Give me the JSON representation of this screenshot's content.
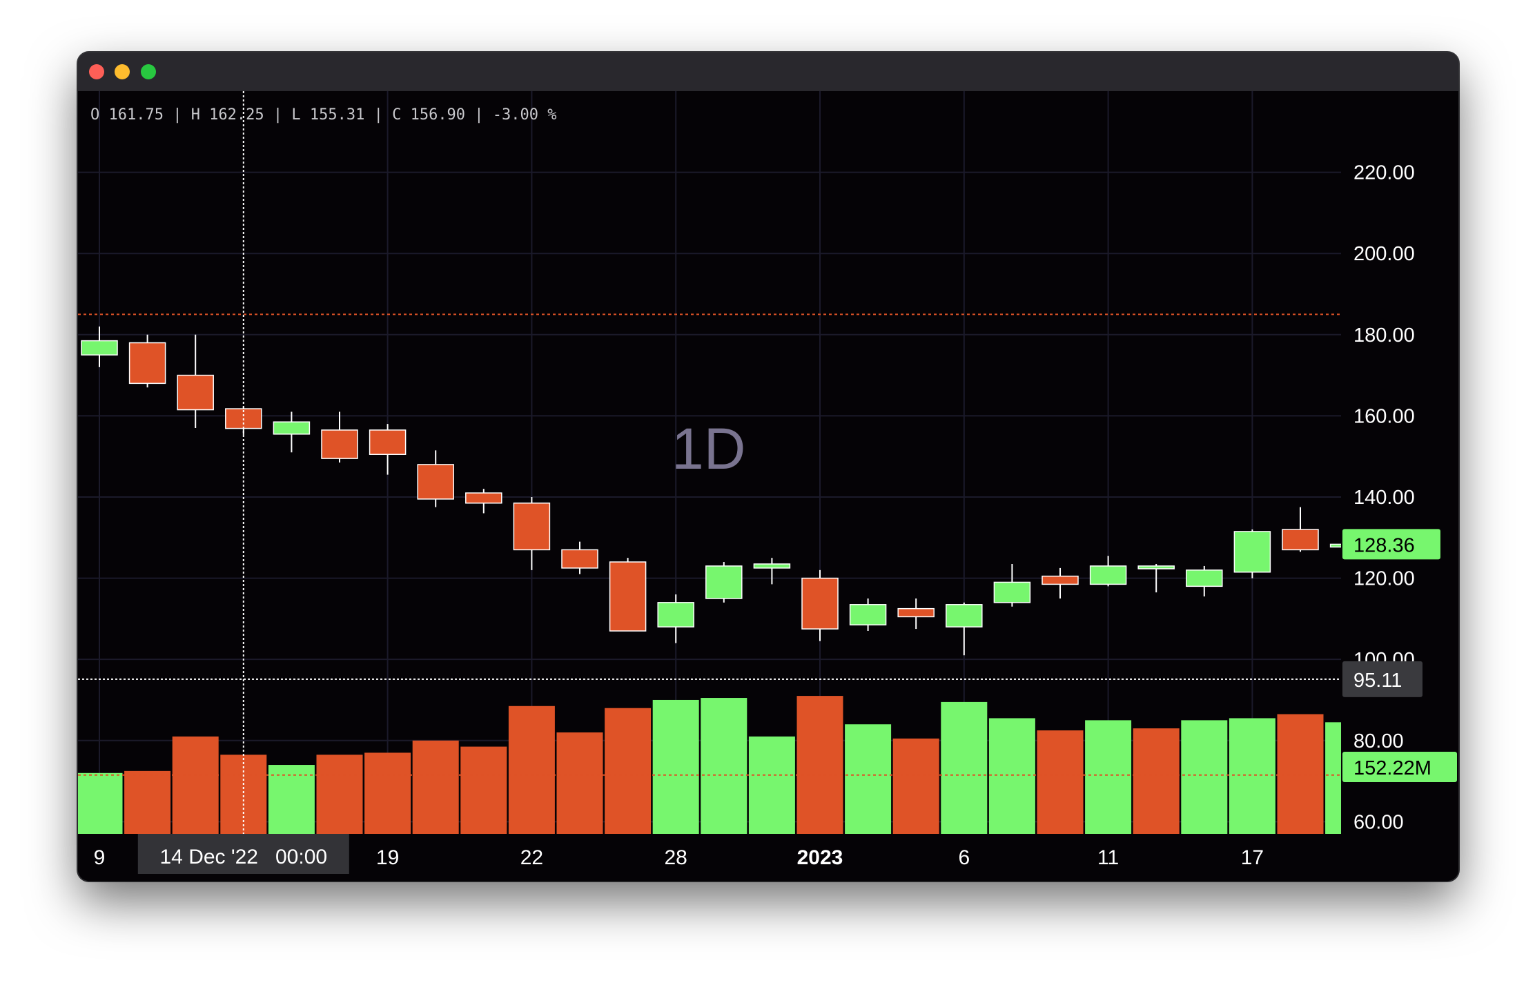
{
  "ohlc_line": "O 161.75 | H 162.25 | L 155.31 | C 156.90 | -3.00 %",
  "watermark": "1D",
  "crosshair": {
    "time_label": "14 Dec '22   00:00",
    "price_label": "95.11",
    "price_value": 95.11
  },
  "last_price": {
    "label": "128.36",
    "value": 128.36
  },
  "last_volume": {
    "label": "152.22M"
  },
  "colors": {
    "up": "#77f66e",
    "down": "#df5327",
    "background": "#050306",
    "grid": "#1b1a2a",
    "text": "#ffffff",
    "price_line": "#df5327"
  },
  "chart_data": {
    "type": "candlestick",
    "price_axis_ticks": [
      "220.00",
      "200.00",
      "180.00",
      "160.00",
      "140.00",
      "120.00",
      "100.00",
      "80.00",
      "60.00"
    ],
    "price_axis_values": [
      220,
      200,
      180,
      160,
      140,
      120,
      100,
      80,
      60
    ],
    "ylim": [
      57,
      240
    ],
    "time_axis_ticks": [
      {
        "label": "9",
        "index": 0,
        "bold": false
      },
      {
        "label": "19",
        "index": 6,
        "bold": false
      },
      {
        "label": "22",
        "index": 9,
        "bold": false
      },
      {
        "label": "28",
        "index": 12,
        "bold": false
      },
      {
        "label": "2023",
        "index": 15,
        "bold": true
      },
      {
        "label": "6",
        "index": 18,
        "bold": false
      },
      {
        "label": "11",
        "index": 21,
        "bold": false
      },
      {
        "label": "17",
        "index": 24,
        "bold": false
      }
    ],
    "horizontal_price_line": 185,
    "candles": [
      {
        "o": 175,
        "h": 182,
        "l": 172,
        "c": 178.5
      },
      {
        "o": 178,
        "h": 180,
        "l": 167,
        "c": 168
      },
      {
        "o": 170,
        "h": 180,
        "l": 157,
        "c": 161.5
      },
      {
        "o": 161.75,
        "h": 162.25,
        "l": 155.31,
        "c": 156.9
      },
      {
        "o": 155.5,
        "h": 161,
        "l": 151,
        "c": 158.5
      },
      {
        "o": 156.5,
        "h": 161,
        "l": 148.5,
        "c": 149.5
      },
      {
        "o": 156.5,
        "h": 158,
        "l": 145.5,
        "c": 150.5
      },
      {
        "o": 148,
        "h": 151.5,
        "l": 137.5,
        "c": 139.5
      },
      {
        "o": 141,
        "h": 142,
        "l": 136,
        "c": 138.5
      },
      {
        "o": 138.5,
        "h": 140,
        "l": 122,
        "c": 127
      },
      {
        "o": 127,
        "h": 129,
        "l": 121,
        "c": 122.5
      },
      {
        "o": 124,
        "h": 125,
        "l": 107,
        "c": 107
      },
      {
        "o": 108,
        "h": 116,
        "l": 104,
        "c": 114
      },
      {
        "o": 115,
        "h": 124,
        "l": 114,
        "c": 123
      },
      {
        "o": 122.5,
        "h": 125,
        "l": 118.5,
        "c": 123.5
      },
      {
        "o": 120,
        "h": 122,
        "l": 104.5,
        "c": 107.5
      },
      {
        "o": 108.5,
        "h": 115,
        "l": 107,
        "c": 113.5
      },
      {
        "o": 112.5,
        "h": 115,
        "l": 107.5,
        "c": 110.5
      },
      {
        "o": 108,
        "h": 114,
        "l": 101,
        "c": 113.5
      },
      {
        "o": 114,
        "h": 123.5,
        "l": 113,
        "c": 119
      },
      {
        "o": 120.5,
        "h": 122.5,
        "l": 115,
        "c": 118.5
      },
      {
        "o": 118.5,
        "h": 125.5,
        "l": 118,
        "c": 123
      },
      {
        "o": 123,
        "h": 123.5,
        "l": 116.5,
        "c": 123
      },
      {
        "o": 118,
        "h": 123,
        "l": 115.5,
        "c": 122
      },
      {
        "o": 121.5,
        "h": 132,
        "l": 120,
        "c": 131.5
      },
      {
        "o": 132,
        "h": 137.5,
        "l": 126.5,
        "c": 127
      },
      {
        "o": 128,
        "h": 128.5,
        "l": 128,
        "c": 128.36
      }
    ],
    "volume": {
      "display_floor": 55,
      "bars": [
        {
          "v": 72,
          "up": true
        },
        {
          "v": 72.5,
          "up": false
        },
        {
          "v": 81,
          "up": false
        },
        {
          "v": 76.5,
          "up": false
        },
        {
          "v": 74,
          "up": true
        },
        {
          "v": 76.5,
          "up": false
        },
        {
          "v": 77,
          "up": false
        },
        {
          "v": 80,
          "up": false
        },
        {
          "v": 78.5,
          "up": false
        },
        {
          "v": 88.5,
          "up": false
        },
        {
          "v": 82,
          "up": false
        },
        {
          "v": 88,
          "up": false
        },
        {
          "v": 90,
          "up": true
        },
        {
          "v": 90.5,
          "up": true
        },
        {
          "v": 81,
          "up": true
        },
        {
          "v": 91,
          "up": false
        },
        {
          "v": 84,
          "up": true
        },
        {
          "v": 80.5,
          "up": false
        },
        {
          "v": 89.5,
          "up": true
        },
        {
          "v": 85.5,
          "up": true
        },
        {
          "v": 82.5,
          "up": false
        },
        {
          "v": 85,
          "up": true
        },
        {
          "v": 83,
          "up": false
        },
        {
          "v": 85,
          "up": true
        },
        {
          "v": 85.5,
          "up": true
        },
        {
          "v": 86.5,
          "up": false
        },
        {
          "v": 84.5,
          "up": true
        }
      ],
      "average_line": 71.5
    }
  }
}
